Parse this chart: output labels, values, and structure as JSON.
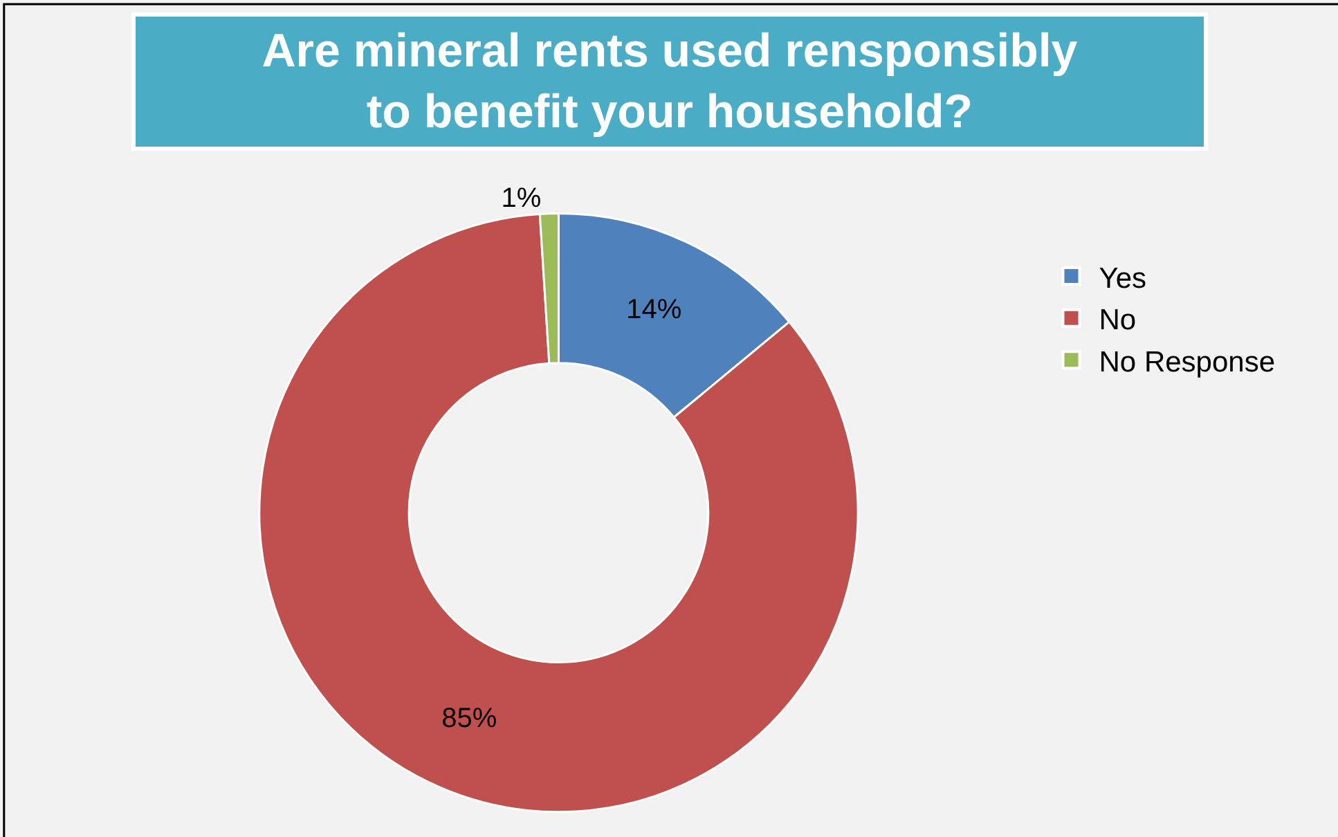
{
  "chart_data": {
    "type": "donut",
    "title": "Are mineral rents used rensponsibly to benefit your household?",
    "categories": [
      "Yes",
      "No",
      "No Response"
    ],
    "values": [
      14,
      85,
      1
    ],
    "colors": [
      "#4f81bd",
      "#c0504d",
      "#9bbb59"
    ],
    "value_labels": [
      "14%",
      "85%",
      "1%"
    ],
    "legend": "right"
  }
}
